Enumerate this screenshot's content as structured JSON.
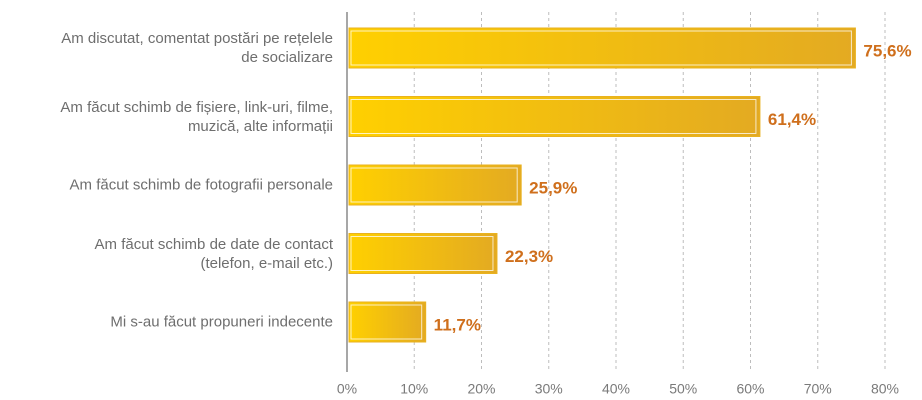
{
  "chart_data": {
    "type": "hbar",
    "categories": [
      "Am discutat, comentat postări pe rețelele\nde socializare",
      "Am făcut schimb de fișiere, link-uri, filme,\nmuzică, alte informații",
      "Am făcut schimb de fotografii personale",
      "Am făcut schimb de date de contact\n(telefon, e-mail etc.)",
      "Mi s-au făcut propuneri indecente"
    ],
    "values": [
      75.6,
      61.4,
      25.9,
      22.3,
      11.7
    ],
    "value_labels": [
      "75,6%",
      "61,4%",
      "25,9%",
      "22,3%",
      "11,7%"
    ],
    "color": "#f7c00f",
    "xlim": [
      0,
      80
    ],
    "xticks": [
      {
        "value": 0,
        "label": "0%"
      },
      {
        "value": 10,
        "label": "10%"
      },
      {
        "value": 20,
        "label": "20%"
      },
      {
        "value": 30,
        "label": "30%"
      },
      {
        "value": 40,
        "label": "40%"
      },
      {
        "value": 50,
        "label": "50%"
      },
      {
        "value": 60,
        "label": "60%"
      },
      {
        "value": 70,
        "label": "70%"
      },
      {
        "value": 80,
        "label": "80%"
      }
    ],
    "grid": true
  }
}
